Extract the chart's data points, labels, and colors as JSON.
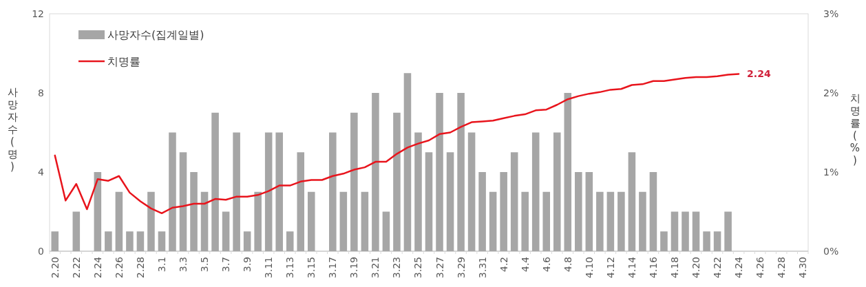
{
  "chart_data": {
    "type": "bar",
    "ylabel": "사망자수(명)",
    "y2label": "치명률(%)",
    "legend": "top left",
    "categories": [
      "2.20",
      null,
      "2.22",
      null,
      "2.24",
      null,
      "2.26",
      null,
      "2.28",
      null,
      "3.1",
      null,
      "3.3",
      null,
      "3.5",
      null,
      "3.7",
      null,
      "3.9",
      null,
      "3.11",
      null,
      "3.13",
      null,
      "3.15",
      null,
      "3.17",
      null,
      "3.19",
      null,
      "3.21",
      null,
      "3.23",
      null,
      "3.25",
      null,
      "3.27",
      null,
      "3.29",
      null,
      "3.31",
      null,
      "4.2",
      null,
      "4.4",
      null,
      "4.6",
      null,
      "4.8",
      null,
      "4.10",
      null,
      "4.12",
      null,
      "4.14",
      null,
      "4.16",
      null,
      "4.18",
      null,
      "4.20",
      null,
      "4.22",
      null,
      "4.24",
      null,
      "4.26",
      null,
      "4.28",
      null,
      "4.30"
    ],
    "ylim": [
      0,
      12
    ],
    "yticks": [
      0,
      4,
      8,
      12
    ],
    "y2lim": [
      0,
      3
    ],
    "y2ticks": [
      {
        "value": 0,
        "label": "0%"
      },
      {
        "value": 1,
        "label": "1%"
      },
      {
        "value": 2,
        "label": "2%"
      },
      {
        "value": 3,
        "label": "3%"
      }
    ],
    "series": [
      {
        "name": "사망자수(집계일별)",
        "color": "#a6a6a6",
        "values": [
          1,
          0,
          2,
          0,
          4,
          1,
          3,
          1,
          1,
          3,
          1,
          6,
          5,
          4,
          3,
          7,
          2,
          6,
          1,
          3,
          6,
          6,
          1,
          5,
          3,
          0,
          6,
          3,
          7,
          3,
          8,
          2,
          7,
          9,
          6,
          5,
          8,
          5,
          8,
          6,
          4,
          3,
          4,
          5,
          3,
          6,
          3,
          6,
          8,
          4,
          4,
          3,
          3,
          3,
          5,
          3,
          4,
          1,
          2,
          2,
          2,
          1,
          1,
          2,
          null,
          null,
          null,
          null,
          null,
          null,
          null
        ]
      },
      {
        "name": "치명률",
        "type": "line",
        "axis": "y2",
        "color": "#e8141c",
        "values": [
          1.21,
          0.64,
          0.85,
          0.53,
          0.91,
          0.89,
          0.95,
          0.74,
          0.63,
          0.54,
          0.48,
          0.55,
          0.57,
          0.6,
          0.6,
          0.66,
          0.65,
          0.69,
          0.69,
          0.71,
          0.76,
          0.83,
          0.83,
          0.88,
          0.9,
          0.9,
          0.95,
          0.98,
          1.03,
          1.06,
          1.13,
          1.13,
          1.23,
          1.31,
          1.36,
          1.4,
          1.48,
          1.5,
          1.57,
          1.63,
          1.64,
          1.65,
          1.68,
          1.71,
          1.73,
          1.78,
          1.79,
          1.85,
          1.92,
          1.96,
          1.99,
          2.01,
          2.04,
          2.05,
          2.1,
          2.11,
          2.15,
          2.15,
          2.17,
          2.19,
          2.2,
          2.2,
          2.21,
          2.23,
          2.24,
          null,
          null,
          null,
          null,
          null,
          null
        ]
      }
    ],
    "annotations": [
      "2.24"
    ]
  }
}
